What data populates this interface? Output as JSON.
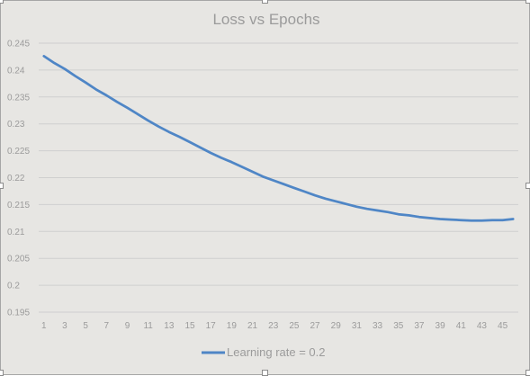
{
  "chart_data": {
    "type": "line",
    "title": "Loss vs Epochs",
    "xlabel": "",
    "ylabel": "",
    "x": [
      1,
      2,
      3,
      4,
      5,
      6,
      7,
      8,
      9,
      10,
      11,
      12,
      13,
      14,
      15,
      16,
      17,
      18,
      19,
      20,
      21,
      22,
      23,
      24,
      25,
      26,
      27,
      28,
      29,
      30,
      31,
      32,
      33,
      34,
      35,
      36,
      37,
      38,
      39,
      40,
      41,
      42,
      43,
      44,
      45,
      46
    ],
    "x_tick_labels": [
      "1",
      "3",
      "5",
      "7",
      "9",
      "11",
      "13",
      "15",
      "17",
      "19",
      "21",
      "23",
      "25",
      "27",
      "29",
      "31",
      "33",
      "35",
      "37",
      "39",
      "41",
      "43",
      "45"
    ],
    "ylim": [
      0.195,
      0.245
    ],
    "y_tick_labels": [
      "0.245",
      "0.24",
      "0.235",
      "0.23",
      "0.225",
      "0.22",
      "0.215",
      "0.21",
      "0.205",
      "0.2",
      "0.195"
    ],
    "y_tick_values": [
      0.245,
      0.24,
      0.235,
      0.23,
      0.225,
      0.22,
      0.215,
      0.21,
      0.205,
      0.2,
      0.195
    ],
    "grid": true,
    "legend_position": "bottom",
    "series": [
      {
        "name": "Learning rate = 0.2",
        "color": "#4f86c6",
        "values": [
          0.2426,
          0.2413,
          0.2402,
          0.2389,
          0.2377,
          0.2364,
          0.2353,
          0.2341,
          0.233,
          0.2318,
          0.2306,
          0.2295,
          0.2285,
          0.2276,
          0.2266,
          0.2256,
          0.2246,
          0.2237,
          0.2229,
          0.222,
          0.2211,
          0.2202,
          0.2195,
          0.2188,
          0.2181,
          0.2174,
          0.2167,
          0.2161,
          0.2156,
          0.2151,
          0.2146,
          0.2142,
          0.2139,
          0.2136,
          0.2132,
          0.213,
          0.2127,
          0.2125,
          0.2123,
          0.2122,
          0.2121,
          0.212,
          0.212,
          0.2121,
          0.2121,
          0.2123
        ]
      }
    ]
  }
}
